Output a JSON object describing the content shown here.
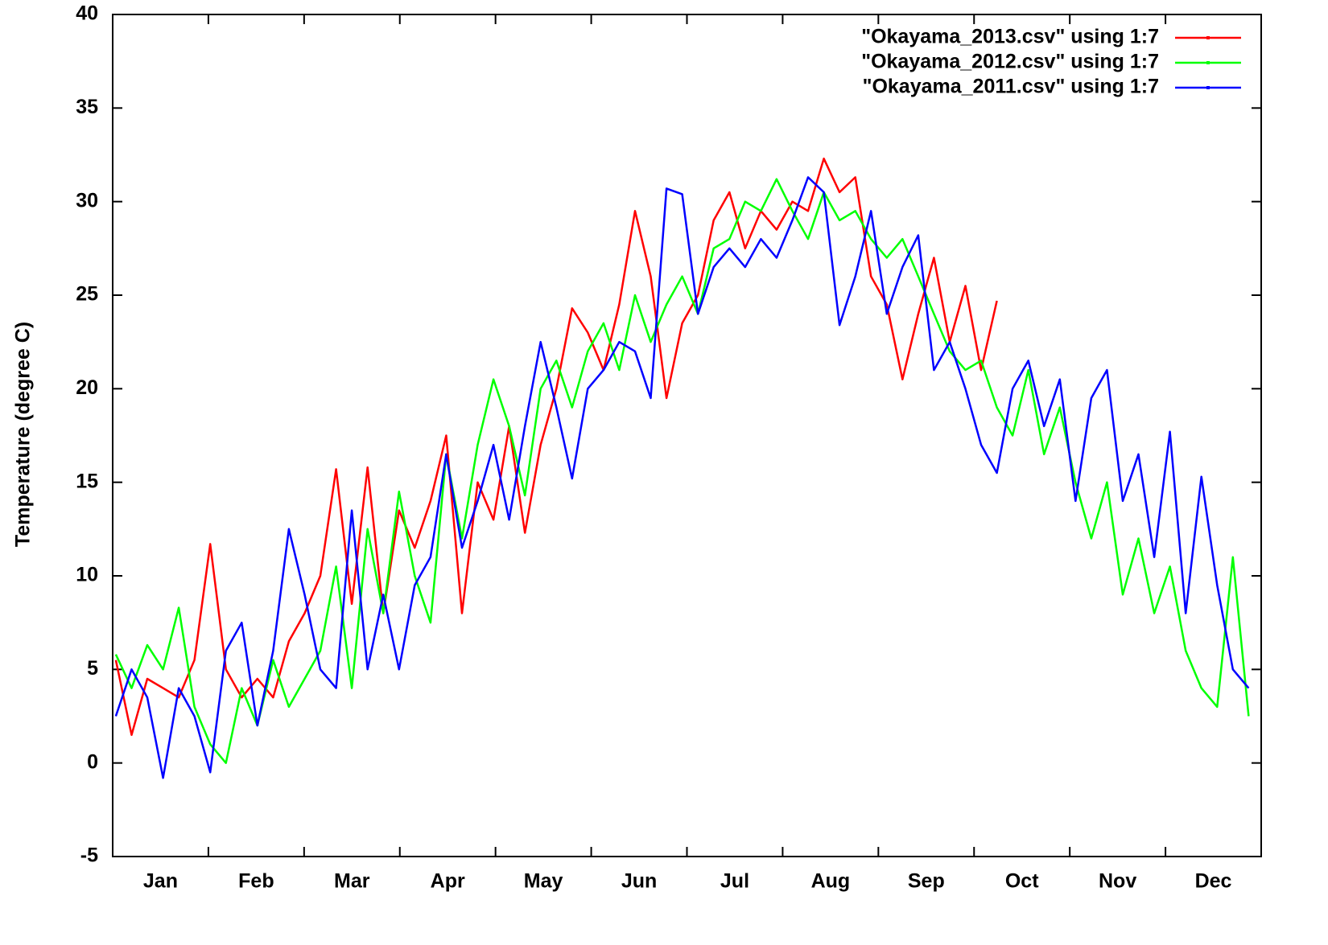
{
  "chart_data": {
    "type": "line",
    "ylabel": "Temperature (degree C)",
    "categories": [
      "Jan",
      "Feb",
      "Mar",
      "Apr",
      "May",
      "Jun",
      "Jul",
      "Aug",
      "Sep",
      "Oct",
      "Nov",
      "Dec"
    ],
    "x": [
      1,
      6,
      11,
      16,
      21,
      26,
      31,
      36,
      41,
      46,
      51,
      56,
      61,
      66,
      71,
      76,
      81,
      86,
      91,
      96,
      101,
      106,
      111,
      116,
      121,
      126,
      131,
      136,
      141,
      146,
      151,
      156,
      161,
      166,
      171,
      176,
      181,
      186,
      191,
      196,
      201,
      206,
      211,
      216,
      221,
      226,
      231,
      236,
      241,
      246,
      251,
      256,
      261,
      266,
      271,
      276,
      281,
      286,
      291,
      296,
      301,
      306,
      311,
      316,
      321,
      326,
      331,
      336,
      341,
      346,
      351,
      356,
      361
    ],
    "xlim": [
      0,
      365
    ],
    "ylim": [
      -5,
      40
    ],
    "yticks": [
      -5,
      0,
      5,
      10,
      15,
      20,
      25,
      30,
      35,
      40
    ],
    "legend": "top-right",
    "series": [
      {
        "name": "\"Okayama_2013.csv\" using 1:7",
        "color": "#ff0000",
        "values": [
          5.5,
          1.5,
          4.5,
          4,
          3.5,
          5.5,
          11.7,
          5,
          3.5,
          4.5,
          3.5,
          6.5,
          8,
          10,
          15.7,
          8.5,
          15.8,
          8,
          13.5,
          11.5,
          14,
          17.5,
          8,
          15,
          13,
          18,
          12.3,
          17,
          20,
          24.3,
          23,
          21,
          24.5,
          29.5,
          26,
          19.5,
          23.5,
          25,
          29,
          30.5,
          27.5,
          29.5,
          28.5,
          30,
          29.5,
          32.3,
          30.5,
          31.3,
          26,
          24.5,
          20.5,
          24,
          27,
          22.5,
          25.5,
          21,
          24.7,
          null,
          null,
          null,
          null,
          null,
          null,
          null,
          null,
          null,
          null,
          null,
          null,
          null,
          null,
          null,
          null
        ]
      },
      {
        "name": "\"Okayama_2012.csv\" using 1:7",
        "color": "#00ff00",
        "values": [
          5.8,
          4,
          6.3,
          5,
          8.3,
          3,
          1,
          0,
          4,
          2,
          5.5,
          3,
          4.5,
          6,
          10.5,
          4,
          12.5,
          8,
          14.5,
          10,
          7.5,
          16.5,
          12,
          17,
          20.5,
          18,
          14.3,
          20,
          21.5,
          19,
          22,
          23.5,
          21,
          25,
          22.5,
          24.5,
          26,
          24,
          27.5,
          28,
          30,
          29.5,
          31.2,
          29.5,
          28,
          30.5,
          29,
          29.5,
          28,
          27,
          28,
          26,
          24,
          22,
          21,
          21.5,
          19,
          17.5,
          21,
          16.5,
          19,
          15,
          12,
          15,
          9,
          12,
          8,
          10.5,
          6,
          4,
          3,
          11,
          2.5
        ]
      },
      {
        "name": "\"Okayama_2011.csv\" using 1:7",
        "color": "#0000ff",
        "values": [
          2.5,
          5,
          3.5,
          -0.8,
          4,
          2.5,
          -0.5,
          6,
          7.5,
          2,
          6,
          12.5,
          9,
          5,
          4,
          13.5,
          5,
          9,
          5,
          9.5,
          11,
          16.5,
          11.5,
          14,
          17,
          13,
          18,
          22.5,
          19,
          15.2,
          20,
          21,
          22.5,
          22,
          19.5,
          30.7,
          30.4,
          24,
          26.5,
          27.5,
          26.5,
          28,
          27,
          29,
          31.3,
          30.5,
          23.4,
          26,
          29.5,
          24,
          26.5,
          28.2,
          21,
          22.5,
          20,
          17,
          15.5,
          20,
          21.5,
          18,
          20.5,
          14,
          19.5,
          21,
          14,
          16.5,
          11,
          17.7,
          8,
          15.3,
          9.5,
          5,
          4
        ]
      }
    ]
  }
}
